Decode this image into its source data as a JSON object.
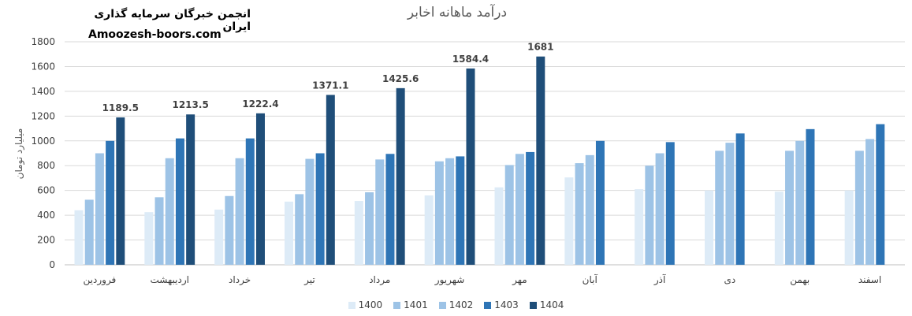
{
  "header": {
    "brand_title": "انجمن خبرگان سرمایه گذاری ایران",
    "brand_site": "Amoozesh-boors.com"
  },
  "chart_data": {
    "type": "bar",
    "title": "درآمد ماهانه اخابر",
    "ylabel": "میلیارد تومان",
    "xlabel": "",
    "ylim": [
      0,
      1800
    ],
    "yticks": [
      0,
      200,
      400,
      600,
      800,
      1000,
      1200,
      1400,
      1600,
      1800
    ],
    "grid": true,
    "legend_position": "bottom",
    "categories": [
      "فروردین",
      "اردیبهشت",
      "خرداد",
      "تیر",
      "مرداد",
      "شهریور",
      "مهر",
      "آبان",
      "آذر",
      "دی",
      "بهمن",
      "اسفند"
    ],
    "series": [
      {
        "name": "1400",
        "color": "#DDEBF7",
        "values": [
          440,
          425,
          445,
          510,
          515,
          560,
          625,
          705,
          610,
          600,
          590,
          600
        ]
      },
      {
        "name": "1401",
        "color": "#9DC3E6",
        "values": [
          525,
          545,
          555,
          570,
          585,
          835,
          805,
          820,
          800,
          920,
          920,
          920
        ]
      },
      {
        "name": "1402",
        "color": "#9DC3E6",
        "values": [
          900,
          860,
          860,
          855,
          850,
          860,
          895,
          885,
          900,
          985,
          1000,
          1015
        ]
      },
      {
        "name": "1403",
        "color": "#2E75B6",
        "values": [
          1000,
          1020,
          1020,
          900,
          895,
          875,
          910,
          1000,
          990,
          1060,
          1095,
          1135
        ]
      },
      {
        "name": "1404",
        "color": "#1F4E79",
        "values": [
          1189.5,
          1213.5,
          1222.4,
          1371.1,
          1425.6,
          1584.4,
          1681,
          null,
          null,
          null,
          null,
          null
        ]
      }
    ],
    "data_labels": {
      "1404": [
        "1189.5",
        "1213.5",
        "1222.4",
        "1371.1",
        "1425.6",
        "1584.4",
        "1681"
      ]
    }
  }
}
